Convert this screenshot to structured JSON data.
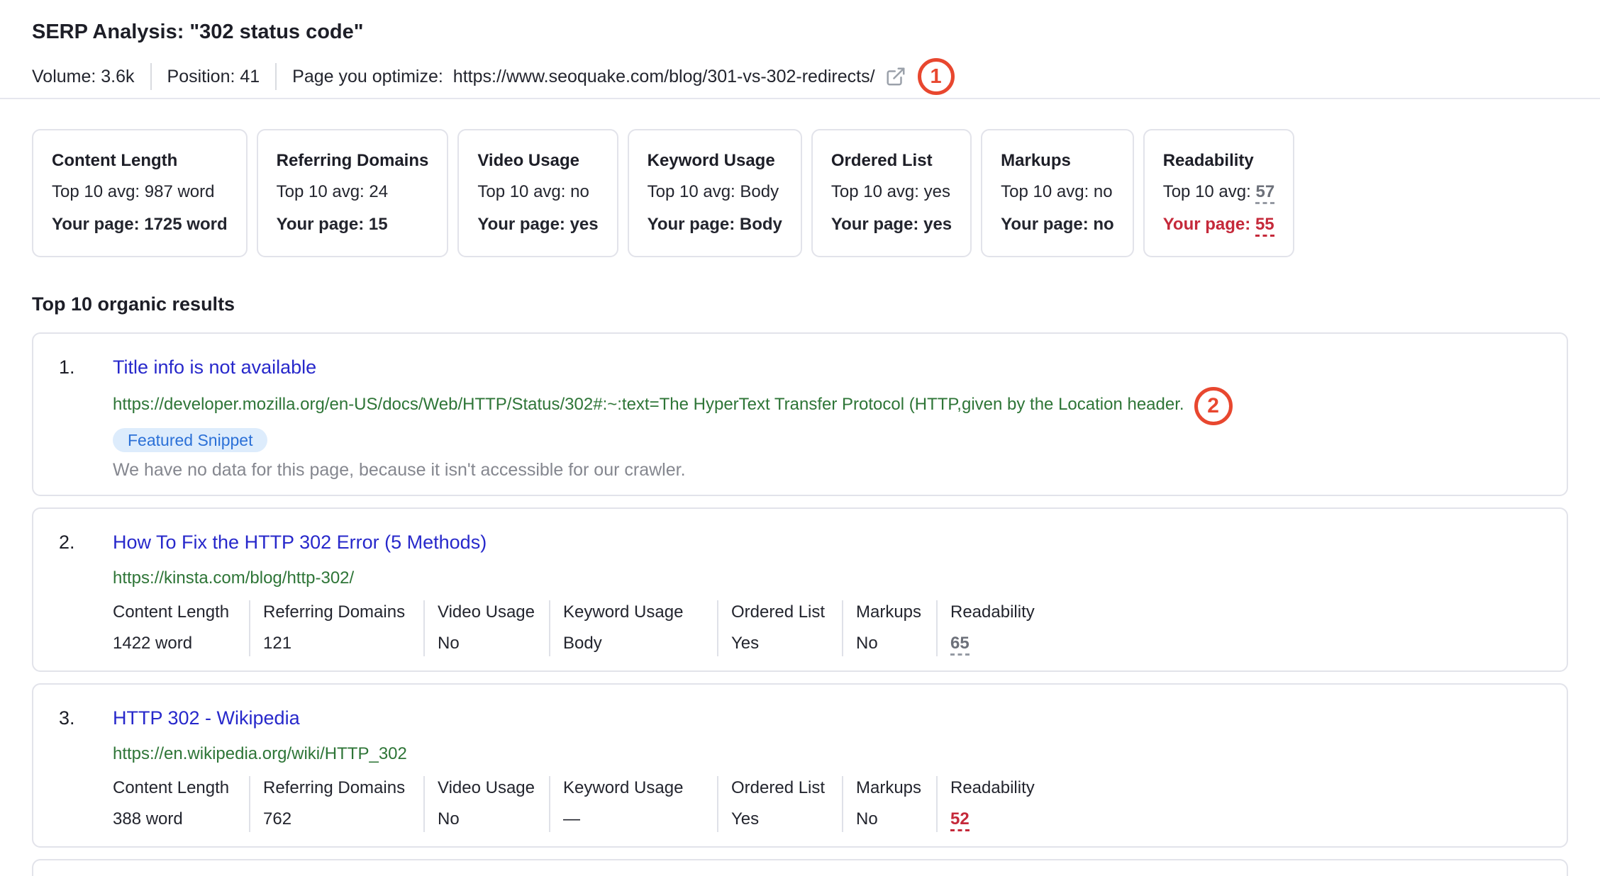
{
  "colors": {
    "annotation_red": "#E8472F",
    "link_blue": "#2728CB",
    "url_green": "#2E7537",
    "badge_bg": "#DDECFC",
    "badge_text": "#2B70D7",
    "score_red": "#C5293A",
    "score_gray": "#6D717A",
    "card_border": "#E2E3EA"
  },
  "header": {
    "title": "SERP Analysis: \"302 status code\"",
    "volume": "Volume: 3.6k",
    "position": "Position: 41",
    "optimize_label": "Page you optimize:",
    "optimize_url": "https://www.seoquake.com/blog/301-vs-302-redirects/",
    "external_link_icon": "external-link-icon",
    "annotation_1": "1"
  },
  "summary_cards": [
    {
      "title": "Content Length",
      "avg_label": "Top 10 avg:",
      "avg_value": "987 word",
      "page_label": "Your page:",
      "page_value": "1725 word"
    },
    {
      "title": "Referring Domains",
      "avg_label": "Top 10 avg:",
      "avg_value": "24",
      "page_label": "Your page:",
      "page_value": "15"
    },
    {
      "title": "Video Usage",
      "avg_label": "Top 10 avg:",
      "avg_value": "no",
      "page_label": "Your page:",
      "page_value": "yes"
    },
    {
      "title": "Keyword Usage",
      "avg_label": "Top 10 avg:",
      "avg_value": "Body",
      "page_label": "Your page:",
      "page_value": "Body"
    },
    {
      "title": "Ordered List",
      "avg_label": "Top 10 avg:",
      "avg_value": "yes",
      "page_label": "Your page:",
      "page_value": "yes"
    },
    {
      "title": "Markups",
      "avg_label": "Top 10 avg:",
      "avg_value": "no",
      "page_label": "Your page:",
      "page_value": "no"
    },
    {
      "title": "Readability",
      "avg_label": "Top 10 avg:",
      "avg_value": "57",
      "avg_score": "gray",
      "page_label": "Your page:",
      "page_value": "55",
      "page_score": "red"
    }
  ],
  "results_heading": "Top 10 organic results",
  "results": [
    {
      "rank": "1.",
      "title": "Title info is not available",
      "url": "https://developer.mozilla.org/en-US/docs/Web/HTTP/Status/302#:~:text=The HyperText Transfer Protocol (HTTP,given by the Location header.",
      "annotation": "2",
      "badge": "Featured Snippet",
      "note": "We have no data for this page, because it isn't accessible for our crawler."
    },
    {
      "rank": "2.",
      "title": "How To Fix the HTTP 302 Error (5 Methods)",
      "url": "https://kinsta.com/blog/http-302/",
      "metrics": [
        {
          "label": "Content Length",
          "value": "1422 word"
        },
        {
          "label": "Referring Domains",
          "value": "121"
        },
        {
          "label": "Video Usage",
          "value": "No"
        },
        {
          "label": "Keyword Usage",
          "value": "Body"
        },
        {
          "label": "Ordered List",
          "value": "Yes"
        },
        {
          "label": "Markups",
          "value": "No"
        },
        {
          "label": "Readability",
          "value": "65",
          "score": "gray"
        }
      ]
    },
    {
      "rank": "3.",
      "title": "HTTP 302 - Wikipedia",
      "url": "https://en.wikipedia.org/wiki/HTTP_302",
      "metrics": [
        {
          "label": "Content Length",
          "value": "388 word"
        },
        {
          "label": "Referring Domains",
          "value": "762"
        },
        {
          "label": "Video Usage",
          "value": "No"
        },
        {
          "label": "Keyword Usage",
          "value": "—"
        },
        {
          "label": "Ordered List",
          "value": "Yes"
        },
        {
          "label": "Markups",
          "value": "No"
        },
        {
          "label": "Readability",
          "value": "52",
          "score": "red"
        }
      ]
    }
  ],
  "next_result_peek": true
}
